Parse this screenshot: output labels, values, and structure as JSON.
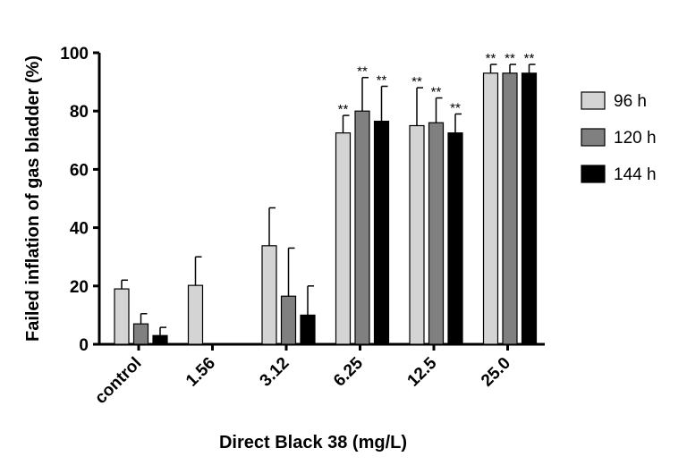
{
  "chart_data": {
    "type": "bar",
    "title": "",
    "xlabel": "Direct Black 38 (mg/L)",
    "ylabel": "Failed inflation of gas bladder (%)",
    "ylim": [
      0,
      100
    ],
    "yticks": [
      0,
      20,
      40,
      60,
      80,
      100
    ],
    "grid": false,
    "legend_position": "right",
    "categories": [
      "control",
      "1.56",
      "3.12",
      "6.25",
      "12.5",
      "25.0"
    ],
    "series": [
      {
        "name": "96 h",
        "color": "#d4d4d4",
        "values": [
          19,
          20.2,
          33.8,
          72.5,
          75,
          93
        ],
        "errors": [
          3,
          9.8,
          13,
          6,
          13,
          3
        ],
        "labels": [
          "",
          "",
          "",
          "**",
          "**",
          "**"
        ]
      },
      {
        "name": "120 h",
        "color": "#808080",
        "values": [
          7,
          0,
          16.5,
          80,
          76,
          93
        ],
        "errors": [
          3.5,
          0,
          16.5,
          11.5,
          8.5,
          3
        ],
        "labels": [
          "",
          "",
          "",
          "**",
          "**",
          "**"
        ]
      },
      {
        "name": "144 h",
        "color": "#000000",
        "values": [
          3,
          0,
          10,
          76.5,
          72.5,
          93
        ],
        "errors": [
          2.8,
          0,
          10,
          12,
          6.5,
          3
        ],
        "labels": [
          "",
          "",
          "",
          "**",
          "**",
          "**"
        ]
      }
    ]
  }
}
